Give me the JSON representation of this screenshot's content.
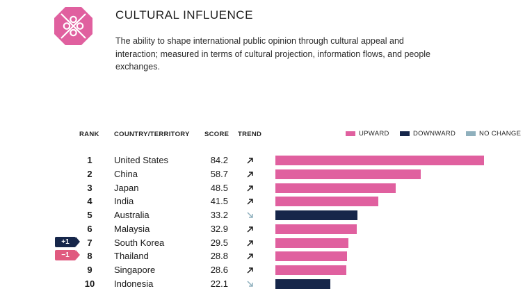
{
  "header": {
    "title": "CULTURAL INFLUENCE",
    "description": "The ability to shape international public opinion through cultural appeal and interaction; measured in terms of cultural projection, information flows, and people exchanges.",
    "logo_icon": "cultural-influence-icon"
  },
  "columns": {
    "rank": "RANK",
    "country": "COUNTRY/TERRITORY",
    "score": "SCORE",
    "trend": "TREND"
  },
  "legend": {
    "upward": "UPWARD",
    "downward": "DOWNWARD",
    "no_change": "NO CHANGE"
  },
  "colors": {
    "upward": "#e0609f",
    "downward": "#16264a",
    "no_change": "#8fb0bd",
    "badge_up": "#16264a",
    "badge_down": "#e05a7f",
    "logo": "#e0609f"
  },
  "chart_data": {
    "type": "bar",
    "title": "CULTURAL INFLUENCE",
    "orientation": "horizontal",
    "xlim": [
      0,
      84.2
    ],
    "rows": [
      {
        "rank": "1",
        "country": "United States",
        "score": 84.2,
        "score_label": "84.2",
        "trend": "upward",
        "change": ""
      },
      {
        "rank": "2",
        "country": "China",
        "score": 58.7,
        "score_label": "58.7",
        "trend": "upward",
        "change": ""
      },
      {
        "rank": "3",
        "country": "Japan",
        "score": 48.5,
        "score_label": "48.5",
        "trend": "upward",
        "change": ""
      },
      {
        "rank": "4",
        "country": "India",
        "score": 41.5,
        "score_label": "41.5",
        "trend": "upward",
        "change": ""
      },
      {
        "rank": "5",
        "country": "Australia",
        "score": 33.2,
        "score_label": "33.2",
        "trend": "downward",
        "change": ""
      },
      {
        "rank": "6",
        "country": "Malaysia",
        "score": 32.9,
        "score_label": "32.9",
        "trend": "upward",
        "change": ""
      },
      {
        "rank": "7",
        "country": "South Korea",
        "score": 29.5,
        "score_label": "29.5",
        "trend": "upward",
        "change": "+1"
      },
      {
        "rank": "8",
        "country": "Thailand",
        "score": 28.8,
        "score_label": "28.8",
        "trend": "upward",
        "change": "−1"
      },
      {
        "rank": "9",
        "country": "Singapore",
        "score": 28.6,
        "score_label": "28.6",
        "trend": "upward",
        "change": ""
      },
      {
        "rank": "10",
        "country": "Indonesia",
        "score": 22.1,
        "score_label": "22.1",
        "trend": "downward",
        "change": ""
      }
    ]
  }
}
